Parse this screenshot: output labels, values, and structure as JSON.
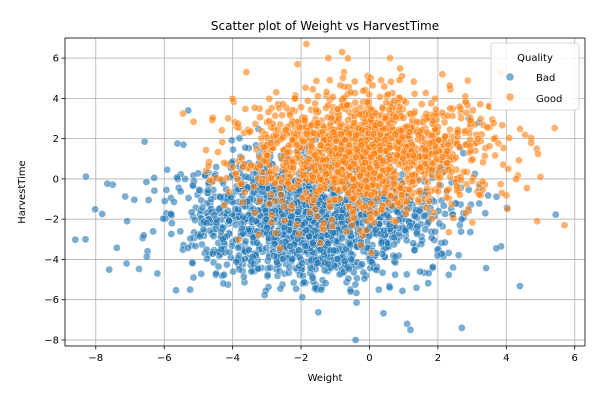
{
  "chart_data": {
    "type": "scatter",
    "title": "Scatter plot of Weight vs HarvestTime",
    "xlabel": "Weight",
    "ylabel": "HarvestTime",
    "xlim": [
      -8.9,
      6.3
    ],
    "ylim": [
      -8.3,
      7.0
    ],
    "xticks": [
      -8,
      -6,
      -4,
      -2,
      0,
      2,
      4,
      6
    ],
    "yticks": [
      -8,
      -6,
      -4,
      -2,
      0,
      2,
      4,
      6
    ],
    "grid": true,
    "legend": {
      "title": "Quality",
      "placement": "top-right"
    },
    "series": [
      {
        "name": "Bad",
        "color": "#1f77b4",
        "n": 1800,
        "center": [
          -1.7,
          -2.0
        ],
        "spread": [
          1.9,
          1.55
        ],
        "extreme_points": [
          [
            -8.3,
            -3.0
          ],
          [
            -7.1,
            -4.2
          ],
          [
            -6.6,
            -2.8
          ],
          [
            -6.2,
            -4.7
          ],
          [
            2.7,
            -7.4
          ],
          [
            1.2,
            -7.5
          ],
          [
            1.1,
            -7.2
          ],
          [
            -5.3,
            3.4
          ],
          [
            3.2,
            2.8
          ],
          [
            2.9,
            3.0
          ]
        ]
      },
      {
        "name": "Good",
        "color": "#ff7f0e",
        "n": 1500,
        "center": [
          -0.2,
          1.3
        ],
        "spread": [
          1.8,
          1.5
        ],
        "extreme_points": [
          [
            5.7,
            -2.3
          ],
          [
            4.9,
            -2.1
          ],
          [
            5.0,
            0.1
          ],
          [
            -2.1,
            5.7
          ],
          [
            -0.8,
            6.3
          ],
          [
            0.6,
            6.0
          ],
          [
            -1.2,
            6.0
          ],
          [
            2.8,
            4.1
          ],
          [
            -3.6,
            5.3
          ]
        ]
      }
    ]
  }
}
